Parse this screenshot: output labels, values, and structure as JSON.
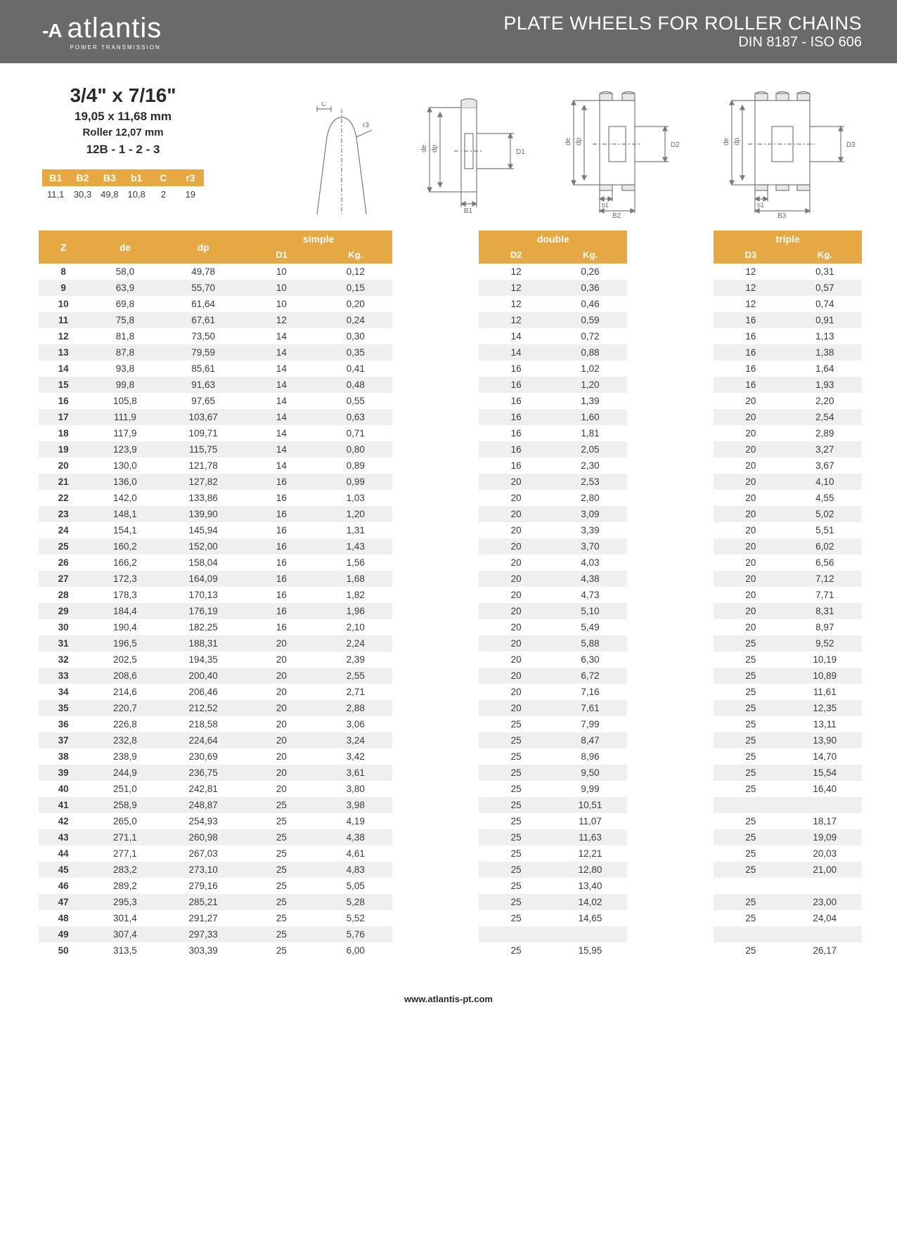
{
  "header": {
    "logo_text": "atlantis",
    "logo_sub": "POWER TRANSMISSION",
    "title_line1": "PLATE WHEELS FOR ROLLER CHAINS",
    "title_line2": "DIN 8187 - ISO 606"
  },
  "spec": {
    "title": "3/4\" x 7/16\"",
    "sub1": "19,05 x 11,68 mm",
    "sub2": "Roller 12,07 mm",
    "sub3": "12B - 1 - 2 - 3"
  },
  "params": {
    "headers": [
      "B1",
      "B2",
      "B3",
      "b1",
      "C",
      "r3"
    ],
    "values": [
      "11,1",
      "30,3",
      "49,8",
      "10,8",
      "2",
      "19"
    ]
  },
  "columns": {
    "z": "Z",
    "de": "de",
    "dp": "dp",
    "simple": "simple",
    "double": "double",
    "triple": "triple",
    "d1": "D1",
    "d2": "D2",
    "d3": "D3",
    "kg": "Kg."
  },
  "rows": [
    {
      "z": "8",
      "de": "58,0",
      "dp": "49,78",
      "d1": "10",
      "kg1": "0,12",
      "d2": "12",
      "kg2": "0,26",
      "d3": "12",
      "kg3": "0,31"
    },
    {
      "z": "9",
      "de": "63,9",
      "dp": "55,70",
      "d1": "10",
      "kg1": "0,15",
      "d2": "12",
      "kg2": "0,36",
      "d3": "12",
      "kg3": "0,57"
    },
    {
      "z": "10",
      "de": "69,8",
      "dp": "61,64",
      "d1": "10",
      "kg1": "0,20",
      "d2": "12",
      "kg2": "0,46",
      "d3": "12",
      "kg3": "0,74"
    },
    {
      "z": "11",
      "de": "75,8",
      "dp": "67,61",
      "d1": "12",
      "kg1": "0,24",
      "d2": "12",
      "kg2": "0,59",
      "d3": "16",
      "kg3": "0,91"
    },
    {
      "z": "12",
      "de": "81,8",
      "dp": "73,50",
      "d1": "14",
      "kg1": "0,30",
      "d2": "14",
      "kg2": "0,72",
      "d3": "16",
      "kg3": "1,13"
    },
    {
      "z": "13",
      "de": "87,8",
      "dp": "79,59",
      "d1": "14",
      "kg1": "0,35",
      "d2": "14",
      "kg2": "0,88",
      "d3": "16",
      "kg3": "1,38"
    },
    {
      "z": "14",
      "de": "93,8",
      "dp": "85,61",
      "d1": "14",
      "kg1": "0,41",
      "d2": "16",
      "kg2": "1,02",
      "d3": "16",
      "kg3": "1,64"
    },
    {
      "z": "15",
      "de": "99,8",
      "dp": "91,63",
      "d1": "14",
      "kg1": "0,48",
      "d2": "16",
      "kg2": "1,20",
      "d3": "16",
      "kg3": "1,93"
    },
    {
      "z": "16",
      "de": "105,8",
      "dp": "97,65",
      "d1": "14",
      "kg1": "0,55",
      "d2": "16",
      "kg2": "1,39",
      "d3": "20",
      "kg3": "2,20"
    },
    {
      "z": "17",
      "de": "111,9",
      "dp": "103,67",
      "d1": "14",
      "kg1": "0,63",
      "d2": "16",
      "kg2": "1,60",
      "d3": "20",
      "kg3": "2,54"
    },
    {
      "z": "18",
      "de": "117,9",
      "dp": "109,71",
      "d1": "14",
      "kg1": "0,71",
      "d2": "16",
      "kg2": "1,81",
      "d3": "20",
      "kg3": "2,89"
    },
    {
      "z": "19",
      "de": "123,9",
      "dp": "115,75",
      "d1": "14",
      "kg1": "0,80",
      "d2": "16",
      "kg2": "2,05",
      "d3": "20",
      "kg3": "3,27"
    },
    {
      "z": "20",
      "de": "130,0",
      "dp": "121,78",
      "d1": "14",
      "kg1": "0,89",
      "d2": "16",
      "kg2": "2,30",
      "d3": "20",
      "kg3": "3,67"
    },
    {
      "z": "21",
      "de": "136,0",
      "dp": "127,82",
      "d1": "16",
      "kg1": "0,99",
      "d2": "20",
      "kg2": "2,53",
      "d3": "20",
      "kg3": "4,10"
    },
    {
      "z": "22",
      "de": "142,0",
      "dp": "133,86",
      "d1": "16",
      "kg1": "1,03",
      "d2": "20",
      "kg2": "2,80",
      "d3": "20",
      "kg3": "4,55"
    },
    {
      "z": "23",
      "de": "148,1",
      "dp": "139,90",
      "d1": "16",
      "kg1": "1,20",
      "d2": "20",
      "kg2": "3,09",
      "d3": "20",
      "kg3": "5,02"
    },
    {
      "z": "24",
      "de": "154,1",
      "dp": "145,94",
      "d1": "16",
      "kg1": "1,31",
      "d2": "20",
      "kg2": "3,39",
      "d3": "20",
      "kg3": "5,51"
    },
    {
      "z": "25",
      "de": "160,2",
      "dp": "152,00",
      "d1": "16",
      "kg1": "1,43",
      "d2": "20",
      "kg2": "3,70",
      "d3": "20",
      "kg3": "6,02"
    },
    {
      "z": "26",
      "de": "166,2",
      "dp": "158,04",
      "d1": "16",
      "kg1": "1,56",
      "d2": "20",
      "kg2": "4,03",
      "d3": "20",
      "kg3": "6,56"
    },
    {
      "z": "27",
      "de": "172,3",
      "dp": "164,09",
      "d1": "16",
      "kg1": "1,68",
      "d2": "20",
      "kg2": "4,38",
      "d3": "20",
      "kg3": "7,12"
    },
    {
      "z": "28",
      "de": "178,3",
      "dp": "170,13",
      "d1": "16",
      "kg1": "1,82",
      "d2": "20",
      "kg2": "4,73",
      "d3": "20",
      "kg3": "7,71"
    },
    {
      "z": "29",
      "de": "184,4",
      "dp": "176,19",
      "d1": "16",
      "kg1": "1,96",
      "d2": "20",
      "kg2": "5,10",
      "d3": "20",
      "kg3": "8,31"
    },
    {
      "z": "30",
      "de": "190,4",
      "dp": "182,25",
      "d1": "16",
      "kg1": "2,10",
      "d2": "20",
      "kg2": "5,49",
      "d3": "20",
      "kg3": "8,97"
    },
    {
      "z": "31",
      "de": "196,5",
      "dp": "188,31",
      "d1": "20",
      "kg1": "2,24",
      "d2": "20",
      "kg2": "5,88",
      "d3": "25",
      "kg3": "9,52"
    },
    {
      "z": "32",
      "de": "202,5",
      "dp": "194,35",
      "d1": "20",
      "kg1": "2,39",
      "d2": "20",
      "kg2": "6,30",
      "d3": "25",
      "kg3": "10,19"
    },
    {
      "z": "33",
      "de": "208,6",
      "dp": "200,40",
      "d1": "20",
      "kg1": "2,55",
      "d2": "20",
      "kg2": "6,72",
      "d3": "25",
      "kg3": "10,89"
    },
    {
      "z": "34",
      "de": "214,6",
      "dp": "206,46",
      "d1": "20",
      "kg1": "2,71",
      "d2": "20",
      "kg2": "7,16",
      "d3": "25",
      "kg3": "11,61"
    },
    {
      "z": "35",
      "de": "220,7",
      "dp": "212,52",
      "d1": "20",
      "kg1": "2,88",
      "d2": "20",
      "kg2": "7,61",
      "d3": "25",
      "kg3": "12,35"
    },
    {
      "z": "36",
      "de": "226,8",
      "dp": "218,58",
      "d1": "20",
      "kg1": "3,06",
      "d2": "25",
      "kg2": "7,99",
      "d3": "25",
      "kg3": "13,11"
    },
    {
      "z": "37",
      "de": "232,8",
      "dp": "224,64",
      "d1": "20",
      "kg1": "3,24",
      "d2": "25",
      "kg2": "8,47",
      "d3": "25",
      "kg3": "13,90"
    },
    {
      "z": "38",
      "de": "238,9",
      "dp": "230,69",
      "d1": "20",
      "kg1": "3,42",
      "d2": "25",
      "kg2": "8,96",
      "d3": "25",
      "kg3": "14,70"
    },
    {
      "z": "39",
      "de": "244,9",
      "dp": "236,75",
      "d1": "20",
      "kg1": "3,61",
      "d2": "25",
      "kg2": "9,50",
      "d3": "25",
      "kg3": "15,54"
    },
    {
      "z": "40",
      "de": "251,0",
      "dp": "242,81",
      "d1": "20",
      "kg1": "3,80",
      "d2": "25",
      "kg2": "9,99",
      "d3": "25",
      "kg3": "16,40"
    },
    {
      "z": "41",
      "de": "258,9",
      "dp": "248,87",
      "d1": "25",
      "kg1": "3,98",
      "d2": "25",
      "kg2": "10,51",
      "d3": "",
      "kg3": ""
    },
    {
      "z": "42",
      "de": "265,0",
      "dp": "254,93",
      "d1": "25",
      "kg1": "4,19",
      "d2": "25",
      "kg2": "11,07",
      "d3": "25",
      "kg3": "18,17"
    },
    {
      "z": "43",
      "de": "271,1",
      "dp": "260,98",
      "d1": "25",
      "kg1": "4,38",
      "d2": "25",
      "kg2": "11,63",
      "d3": "25",
      "kg3": "19,09"
    },
    {
      "z": "44",
      "de": "277,1",
      "dp": "267,03",
      "d1": "25",
      "kg1": "4,61",
      "d2": "25",
      "kg2": "12,21",
      "d3": "25",
      "kg3": "20,03"
    },
    {
      "z": "45",
      "de": "283,2",
      "dp": "273,10",
      "d1": "25",
      "kg1": "4,83",
      "d2": "25",
      "kg2": "12,80",
      "d3": "25",
      "kg3": "21,00"
    },
    {
      "z": "46",
      "de": "289,2",
      "dp": "279,16",
      "d1": "25",
      "kg1": "5,05",
      "d2": "25",
      "kg2": "13,40",
      "d3": "",
      "kg3": ""
    },
    {
      "z": "47",
      "de": "295,3",
      "dp": "285,21",
      "d1": "25",
      "kg1": "5,28",
      "d2": "25",
      "kg2": "14,02",
      "d3": "25",
      "kg3": "23,00"
    },
    {
      "z": "48",
      "de": "301,4",
      "dp": "291,27",
      "d1": "25",
      "kg1": "5,52",
      "d2": "25",
      "kg2": "14,65",
      "d3": "25",
      "kg3": "24,04"
    },
    {
      "z": "49",
      "de": "307,4",
      "dp": "297,33",
      "d1": "25",
      "kg1": "5,76",
      "d2": "",
      "kg2": "",
      "d3": "",
      "kg3": ""
    },
    {
      "z": "50",
      "de": "313,5",
      "dp": "303,39",
      "d1": "25",
      "kg1": "6,00",
      "d2": "25",
      "kg2": "15,95",
      "d3": "25",
      "kg3": "26,17"
    }
  ],
  "footer": {
    "url": "www.atlantis-pt.com"
  },
  "colors": {
    "header_bg": "#6a6a6a",
    "accent": "#e6a843",
    "row_alt": "#efefef",
    "diagram_stroke": "#7a7a7a"
  }
}
